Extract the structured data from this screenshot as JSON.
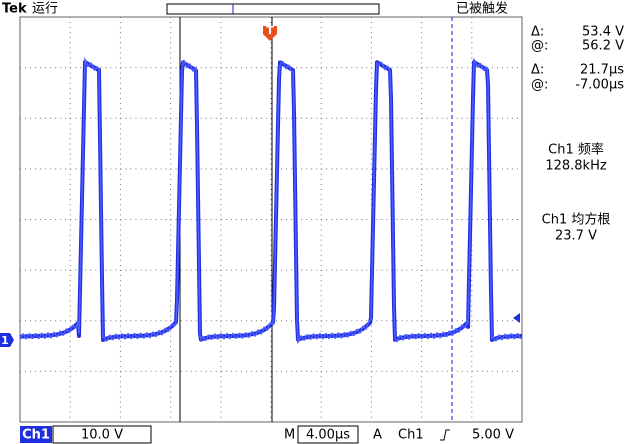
{
  "header": {
    "brand": "Tek",
    "status": "运行",
    "trigger_state": "已被触发"
  },
  "markers": {
    "channel": "1",
    "trigger": "T"
  },
  "readouts": [
    {
      "label": "Δ:",
      "value": "53.4 V"
    },
    {
      "label": "@:",
      "value": "56.2 V"
    },
    {
      "label": "Δ:",
      "value": "21.7µs"
    },
    {
      "label": "@:",
      "value": "-7.00µs"
    }
  ],
  "measurements": [
    {
      "name": "Ch1 频率",
      "value": "128.8kHz"
    },
    {
      "name": "Ch1 均方根",
      "value": "23.7 V"
    }
  ],
  "footer": {
    "channel": "Ch1",
    "scale": "10.0 V",
    "timebase_label": "M",
    "timebase": "4.00µs",
    "trigger_label": "A",
    "trigger_source": "Ch1",
    "trigger_level": "5.00 V"
  }
}
